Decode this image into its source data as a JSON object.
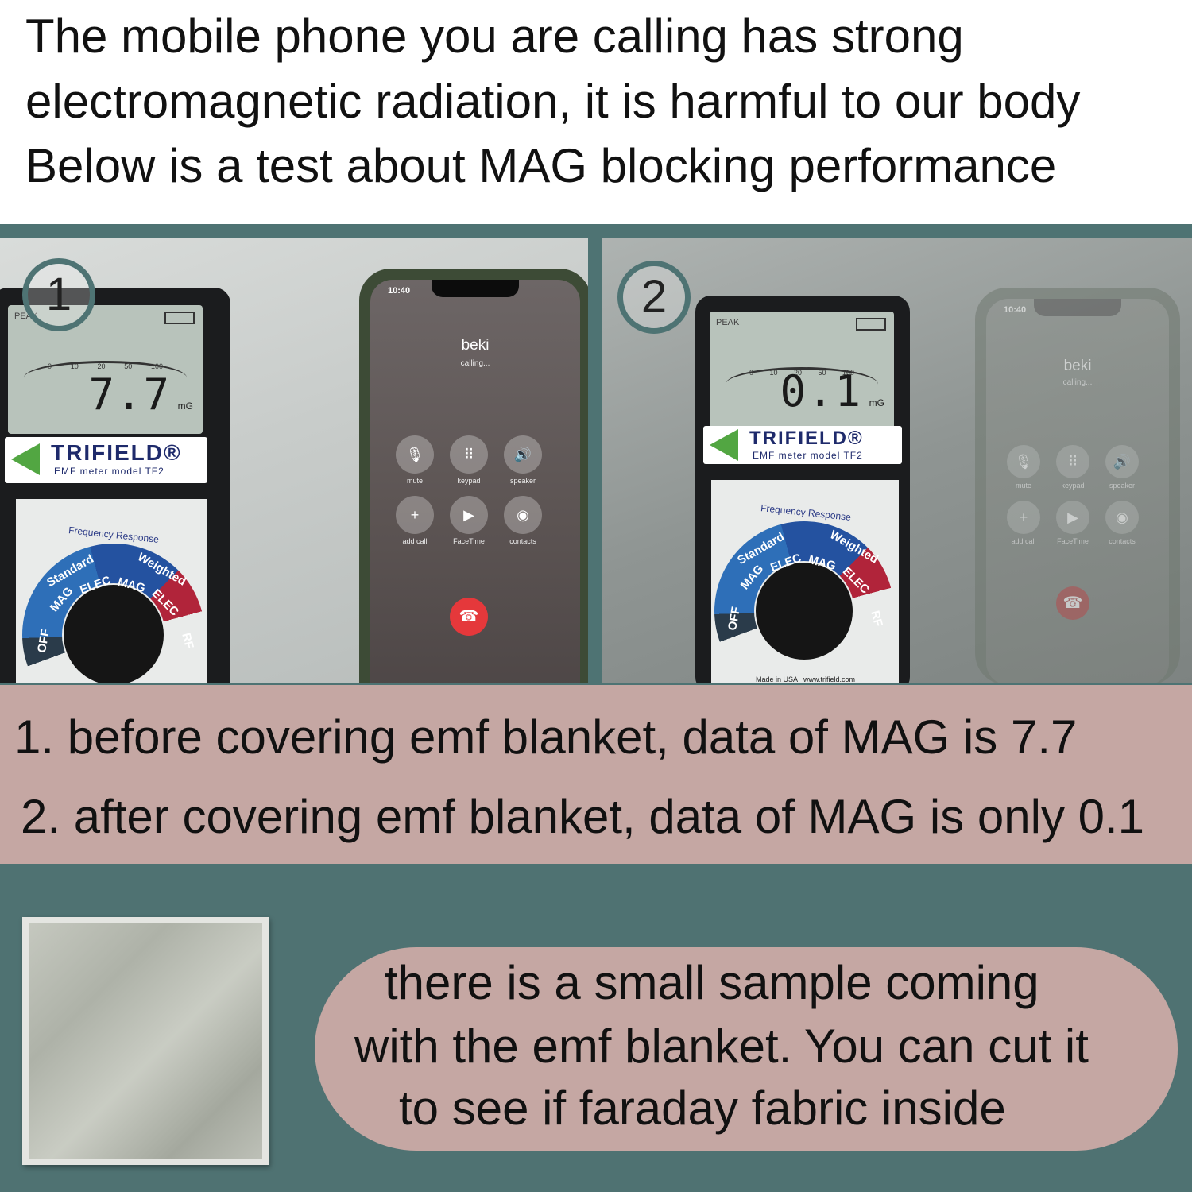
{
  "header": {
    "line1": "The mobile phone you are calling has strong",
    "line2": "electromagnetic radiation, it is harmful to our body",
    "line3": "Below is a test about MAG blocking performance"
  },
  "photo1": {
    "badge": "1",
    "meter": {
      "peak": "PEAK",
      "reading": "7.7",
      "unit": "mG",
      "ticks": [
        "0",
        "10",
        "20",
        "50",
        "100"
      ],
      "brand": "TRIFIELD®",
      "model": "EMF meter model TF2",
      "freq_title": "Frequency Response",
      "freq_standard": "Standard",
      "freq_weighted": "Weighted",
      "dial": [
        "OFF",
        "MAG",
        "ELEC",
        "MAG",
        "ELEC",
        "RF"
      ]
    },
    "phone": {
      "time": "10:40",
      "caller": "beki",
      "status": "calling...",
      "buttons": [
        {
          "icon": "mic-mute-icon",
          "glyph": "🎙",
          "label": "mute"
        },
        {
          "icon": "keypad-icon",
          "glyph": "⠿",
          "label": "keypad"
        },
        {
          "icon": "speaker-icon",
          "glyph": "🔊",
          "label": "speaker"
        },
        {
          "icon": "add-icon",
          "glyph": "+",
          "label": "add call"
        },
        {
          "icon": "facetime-icon",
          "glyph": "▶",
          "label": "FaceTime"
        },
        {
          "icon": "contacts-icon",
          "glyph": "◉",
          "label": "contacts"
        }
      ],
      "end_glyph": "☎"
    }
  },
  "photo2": {
    "badge": "2",
    "meter": {
      "peak": "PEAK",
      "reading": "0.1",
      "unit": "mG",
      "ticks": [
        "0",
        "10",
        "20",
        "50",
        "100"
      ],
      "brand": "TRIFIELD®",
      "model": "EMF meter model TF2",
      "freq_title": "Frequency Response",
      "freq_standard": "Standard",
      "freq_weighted": "Weighted",
      "dial": [
        "OFF",
        "MAG",
        "ELEC",
        "MAG",
        "ELEC",
        "RF"
      ],
      "footer": "Made in USA   www.trifield.com"
    },
    "phone": {
      "time": "10:40",
      "caller": "beki",
      "status": "calling...",
      "buttons": [
        {
          "icon": "mic-mute-icon",
          "glyph": "🎙",
          "label": "mute"
        },
        {
          "icon": "keypad-icon",
          "glyph": "⠿",
          "label": "keypad"
        },
        {
          "icon": "speaker-icon",
          "glyph": "🔊",
          "label": "speaker"
        },
        {
          "icon": "add-icon",
          "glyph": "+",
          "label": "add call"
        },
        {
          "icon": "facetime-icon",
          "glyph": "▶",
          "label": "FaceTime"
        },
        {
          "icon": "contacts-icon",
          "glyph": "◉",
          "label": "contacts"
        }
      ],
      "end_glyph": "☎"
    }
  },
  "captions": {
    "before": "1. before covering emf blanket, data of MAG is 7.7",
    "after": "2. after covering emf blanket, data of MAG is only 0.1"
  },
  "note": {
    "line1": "there is a small sample coming",
    "line2": "with the emf blanket. You can cut it",
    "line3": "to see if faraday fabric inside"
  },
  "colors": {
    "teal_bg": "#4f7272",
    "pink_band": "#c5a7a3",
    "brand_blue": "#1e2a6b",
    "logo_green": "#52a642",
    "end_call_red": "#e5383b"
  }
}
